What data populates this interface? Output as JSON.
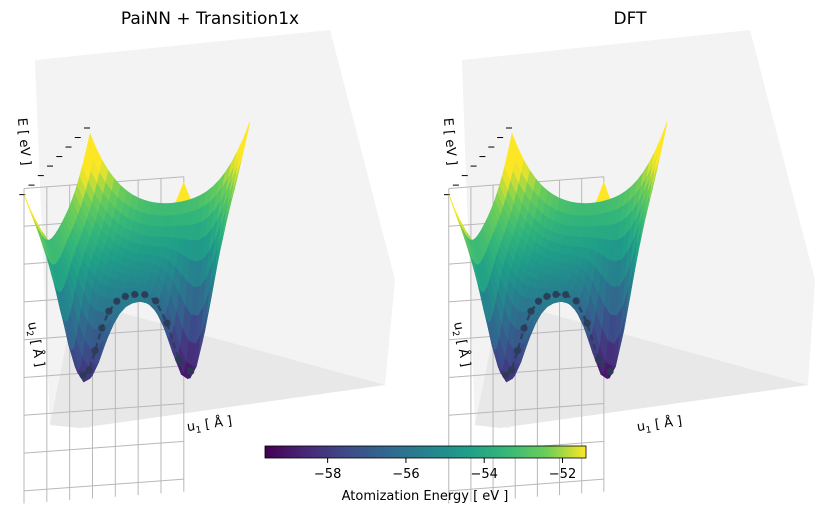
{
  "panels": [
    {
      "title": "PaiNN + Transition1x",
      "xlabel_main": "u",
      "xlabel_sub": "1",
      "xlabel_rest": " [ Å ]",
      "ylabel_main": "u",
      "ylabel_sub": "2",
      "ylabel_rest": " [ Å ]",
      "zlabel": "E [ eV ]"
    },
    {
      "title": "DFT",
      "xlabel_main": "u",
      "xlabel_sub": "1",
      "xlabel_rest": " [ Å ]",
      "ylabel_main": "u",
      "ylabel_sub": "2",
      "ylabel_rest": " [ Å ]",
      "zlabel": "E [ eV ]"
    }
  ],
  "colorbar": {
    "label": "Atomization Energy [ eV ]",
    "colormap": "viridis",
    "range": [
      -59.6,
      -51.4
    ],
    "ticks": [
      -58,
      -56,
      -54,
      -52
    ],
    "tick_labels": [
      "−58",
      "−56",
      "−54",
      "−52"
    ]
  },
  "chart_data": [
    {
      "type": "surface",
      "title": "PaiNN + Transition1x",
      "xlabel": "u1 [ Å ]",
      "ylabel": "u2 [ Å ]",
      "zlabel": "E [ eV ]",
      "surface": "double-well energy surface with two minima joined over a saddle",
      "reaction_path_points": 13,
      "color_range": [
        -59.6,
        -51.4
      ]
    },
    {
      "type": "surface",
      "title": "DFT",
      "xlabel": "u1 [ Å ]",
      "ylabel": "u2 [ Å ]",
      "zlabel": "E [ eV ]",
      "surface": "double-well energy surface with two minima joined over a saddle",
      "reaction_path_points": 13,
      "color_range": [
        -59.6,
        -51.4
      ]
    }
  ],
  "colors": {
    "pane_left": "#f0f0f0",
    "pane_back": "#f2f2f2",
    "pane_floor": "#e9e9e9",
    "grid": "#b3b3b3",
    "path": "#2b3b55"
  }
}
